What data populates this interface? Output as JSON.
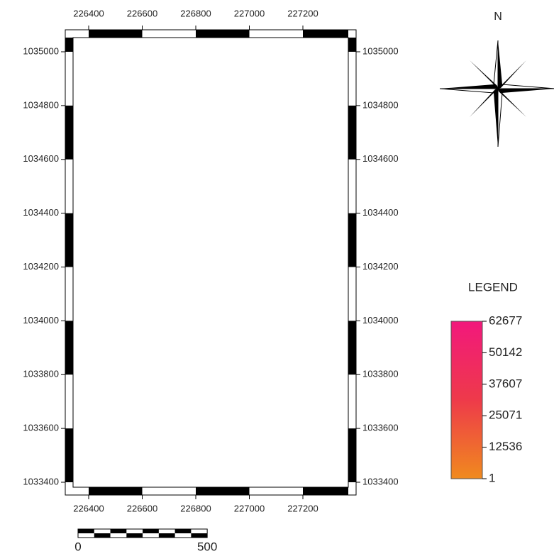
{
  "map": {
    "x_ticks": [
      226400,
      226600,
      226800,
      227000,
      227200
    ],
    "y_ticks": [
      1035000,
      1034800,
      1034600,
      1034400,
      1034200,
      1034000,
      1033800,
      1033600,
      1033400
    ],
    "north_label": "N",
    "legend": {
      "title": "LEGEND",
      "values": [
        62677,
        50142,
        37607,
        25071,
        12536,
        1
      ]
    },
    "scale_bar": {
      "values": [
        0,
        500
      ]
    }
  }
}
